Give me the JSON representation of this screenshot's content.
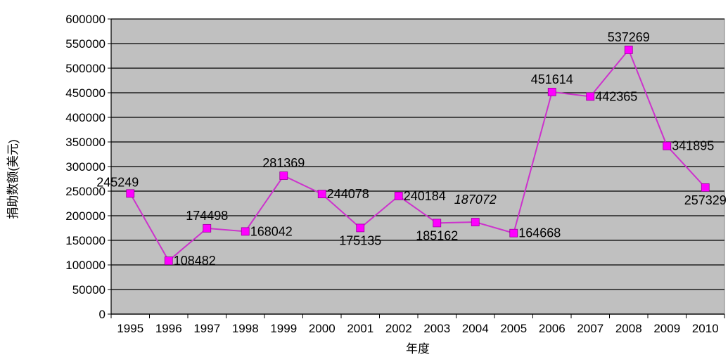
{
  "chart_data": {
    "type": "line",
    "title": "",
    "xlabel": "年度",
    "ylabel": "捐助数额(美元)",
    "categories": [
      "1995",
      "1996",
      "1997",
      "1998",
      "1999",
      "2000",
      "2001",
      "2002",
      "2003",
      "2004",
      "2005",
      "2006",
      "2007",
      "2008",
      "2009",
      "2010"
    ],
    "series": [
      {
        "values": [
          245249,
          108482,
          174498,
          168042,
          281369,
          244078,
          175135,
          240184,
          185162,
          187072,
          164668,
          451614,
          442365,
          537269,
          341895,
          257329
        ],
        "color": "#cc33cc",
        "marker_color": "#ff00ff"
      }
    ],
    "data_labels": [
      "245249",
      "108482",
      "174498",
      "168042",
      "281369",
      "244078",
      "175135",
      "240184",
      "185162",
      "187072",
      "164668",
      "451614",
      "442365",
      "537269",
      "341895",
      "257329"
    ],
    "ylim": [
      0,
      600000
    ],
    "y_ticks": [
      "0",
      "50000",
      "100000",
      "150000",
      "200000",
      "250000",
      "300000",
      "350000",
      "400000",
      "450000",
      "500000",
      "550000",
      "600000"
    ],
    "grid": true,
    "legend": "none",
    "plot_background": "#c0c0c0"
  }
}
